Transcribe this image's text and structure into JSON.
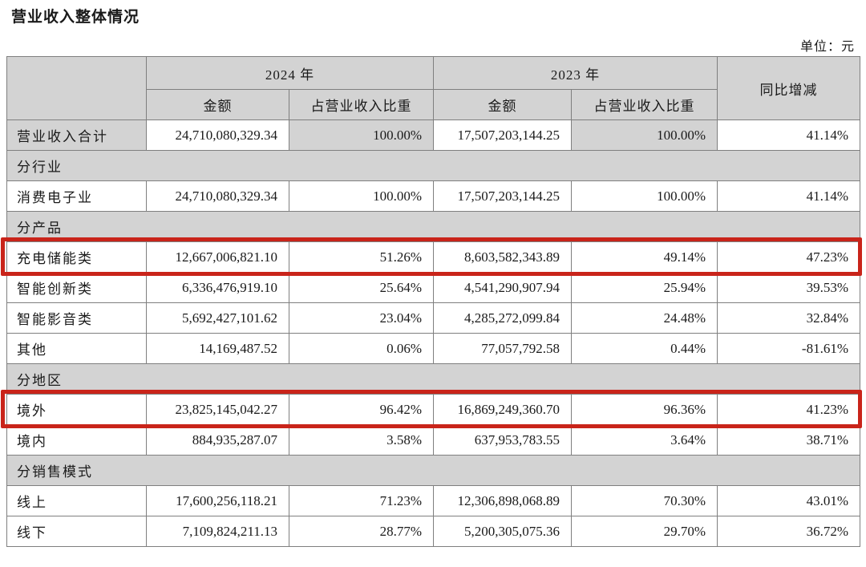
{
  "title": "营业收入整体情况",
  "unit_label": "单位：元",
  "colors": {
    "highlight_red": "#c9241a",
    "header_gray": "#d3d3d3",
    "border_gray": "#7f7f7f"
  },
  "table": {
    "col_headers": {
      "year_2024": "2024 年",
      "year_2023": "2023 年",
      "amount": "金额",
      "ratio": "占营业收入比重",
      "yoy": "同比增减"
    },
    "rows": [
      {
        "type": "data",
        "label": "营业收入合计",
        "shaded": true,
        "values": [
          "24,710,080,329.34",
          "100.00%",
          "17,507,203,144.25",
          "100.00%",
          "41.14%"
        ]
      },
      {
        "type": "section",
        "label": "分行业"
      },
      {
        "type": "data",
        "label": "消费电子业",
        "values": [
          "24,710,080,329.34",
          "100.00%",
          "17,507,203,144.25",
          "100.00%",
          "41.14%"
        ]
      },
      {
        "type": "section",
        "label": "分产品"
      },
      {
        "type": "data",
        "label": "充电储能类",
        "highlight": true,
        "values": [
          "12,667,006,821.10",
          "51.26%",
          "8,603,582,343.89",
          "49.14%",
          "47.23%"
        ]
      },
      {
        "type": "data",
        "label": "智能创新类",
        "values": [
          "6,336,476,919.10",
          "25.64%",
          "4,541,290,907.94",
          "25.94%",
          "39.53%"
        ]
      },
      {
        "type": "data",
        "label": "智能影音类",
        "values": [
          "5,692,427,101.62",
          "23.04%",
          "4,285,272,099.84",
          "24.48%",
          "32.84%"
        ]
      },
      {
        "type": "data",
        "label": "其他",
        "values": [
          "14,169,487.52",
          "0.06%",
          "77,057,792.58",
          "0.44%",
          "-81.61%"
        ]
      },
      {
        "type": "section",
        "label": "分地区"
      },
      {
        "type": "data",
        "label": "境外",
        "highlight": true,
        "values": [
          "23,825,145,042.27",
          "96.42%",
          "16,869,249,360.70",
          "96.36%",
          "41.23%"
        ]
      },
      {
        "type": "data",
        "label": "境内",
        "values": [
          "884,935,287.07",
          "3.58%",
          "637,953,783.55",
          "3.64%",
          "38.71%"
        ]
      },
      {
        "type": "section",
        "label": "分销售模式"
      },
      {
        "type": "data",
        "label": "线上",
        "values": [
          "17,600,256,118.21",
          "71.23%",
          "12,306,898,068.89",
          "70.30%",
          "43.01%"
        ]
      },
      {
        "type": "data",
        "label": "线下",
        "values": [
          "7,109,824,211.13",
          "28.77%",
          "5,200,305,075.36",
          "29.70%",
          "36.72%"
        ]
      }
    ]
  }
}
